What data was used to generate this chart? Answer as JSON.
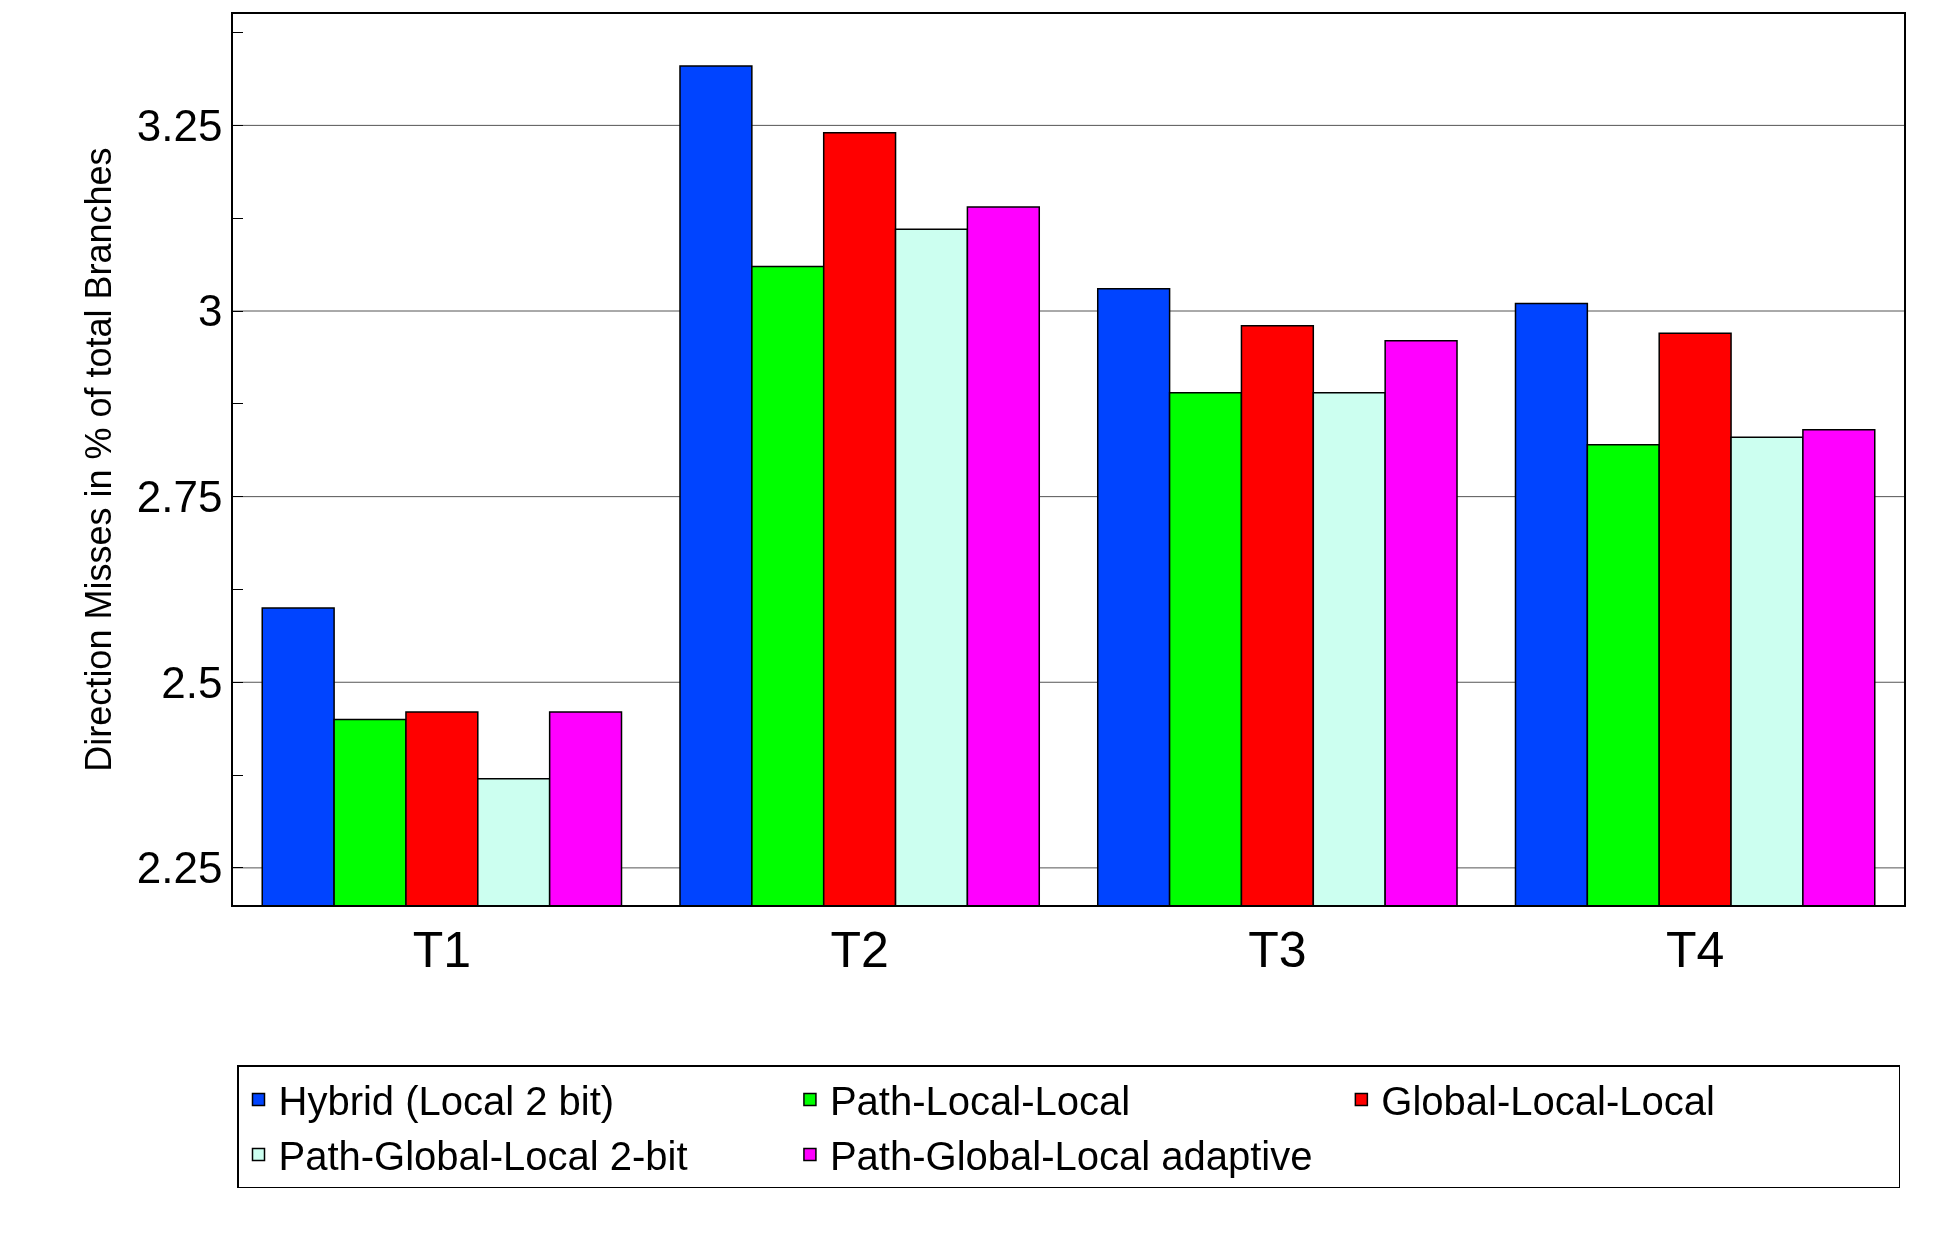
{
  "chart_data": {
    "type": "bar",
    "ylabel": "Direction Misses in % of total Branches",
    "categories": [
      "T1",
      "T2",
      "T3",
      "T4"
    ],
    "series": [
      {
        "name": "Hybrid (Local 2 bit)",
        "color": "#0044ff",
        "values": [
          2.6,
          3.33,
          3.03,
          3.01
        ]
      },
      {
        "name": "Path-Local-Local",
        "color": "#00ff00",
        "values": [
          2.45,
          3.06,
          2.89,
          2.82
        ]
      },
      {
        "name": "Global-Local-Local",
        "color": "#ff0000",
        "values": [
          2.46,
          3.24,
          2.98,
          2.97
        ]
      },
      {
        "name": "Path-Global-Local 2-bit",
        "color": "#ccfff0",
        "values": [
          2.37,
          3.11,
          2.89,
          2.83
        ]
      },
      {
        "name": "Path-Global-Local adaptive",
        "color": "#ff00ff",
        "values": [
          2.46,
          3.14,
          2.96,
          2.84
        ]
      }
    ],
    "ylim": [
      2.2,
      3.4
    ],
    "yticks": [
      2.25,
      {
        "value": 2.375,
        "label": null
      },
      2.5,
      {
        "value": 2.625,
        "label": null
      },
      2.75,
      {
        "value": 2.875,
        "label": null
      },
      3,
      {
        "value": 3.125,
        "label": null
      },
      3.25,
      {
        "value": 3.375,
        "label": null
      }
    ],
    "grid": "y",
    "legend": "bottom"
  }
}
